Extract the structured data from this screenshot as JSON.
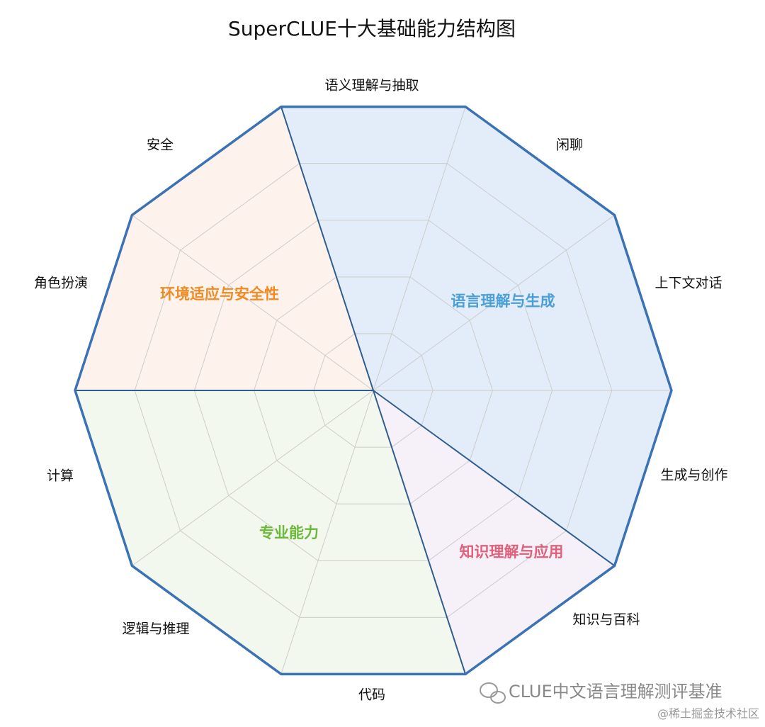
{
  "title": "SuperCLUE十大基础能力结构图",
  "axes": [
    "语义理解与抽取",
    "闲聊",
    "上下文对话",
    "生成与创作",
    "知识与百科",
    "代码",
    "逻辑与推理",
    "计算",
    "角色扮演",
    "安全"
  ],
  "groups": [
    {
      "label": "语言理解与生成",
      "color": "#4a9fd6"
    },
    {
      "label": "知识理解与应用",
      "color": "#e0607a"
    },
    {
      "label": "专业能力",
      "color": "#6cb83a"
    },
    {
      "label": "环境适应与安全性",
      "color": "#f08a24"
    }
  ],
  "watermark": "CLUE中文语言理解测评基准",
  "credit": "@稀土掘金技术社区"
}
